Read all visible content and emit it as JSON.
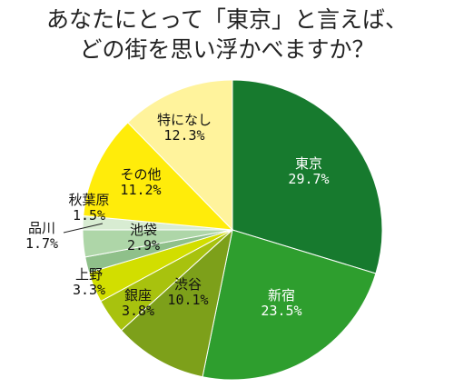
{
  "chart_data": {
    "type": "pie",
    "title_lines": [
      "あなたにとって「東京」と言えば、",
      "どの街を思い浮かべますか？"
    ],
    "slices": [
      {
        "name": "東京",
        "value": 29.7,
        "label": "29.7%",
        "color": "#177a2e",
        "text_color": "#ffffff"
      },
      {
        "name": "新宿",
        "value": 23.5,
        "label": "23.5%",
        "color": "#2e9e2e",
        "text_color": "#ffffff"
      },
      {
        "name": "渋谷",
        "value": 10.1,
        "label": "10.1%",
        "color": "#7da01a",
        "text_color": "#111111"
      },
      {
        "name": "銀座",
        "value": 3.8,
        "label": "3.8%",
        "color": "#a8c20e",
        "text_color": "#111111"
      },
      {
        "name": "上野",
        "value": 3.3,
        "label": "3.3%",
        "color": "#d2de00",
        "text_color": "#111111"
      },
      {
        "name": "品川",
        "value": 1.7,
        "label": "1.7%",
        "color": "#8fc08a",
        "text_color": "#111111"
      },
      {
        "name": "池袋",
        "value": 2.9,
        "label": "2.9%",
        "color": "#aed6a8",
        "text_color": "#111111"
      },
      {
        "name": "秋葉原",
        "value": 1.5,
        "label": "1.5%",
        "color": "#d8ecd2",
        "text_color": "#111111"
      },
      {
        "name": "その他",
        "value": 11.2,
        "label": "11.2%",
        "color": "#ffec0a",
        "text_color": "#111111"
      },
      {
        "name": "特になし",
        "value": 12.3,
        "label": "12.3%",
        "color": "#fff39c",
        "text_color": "#111111"
      }
    ]
  }
}
